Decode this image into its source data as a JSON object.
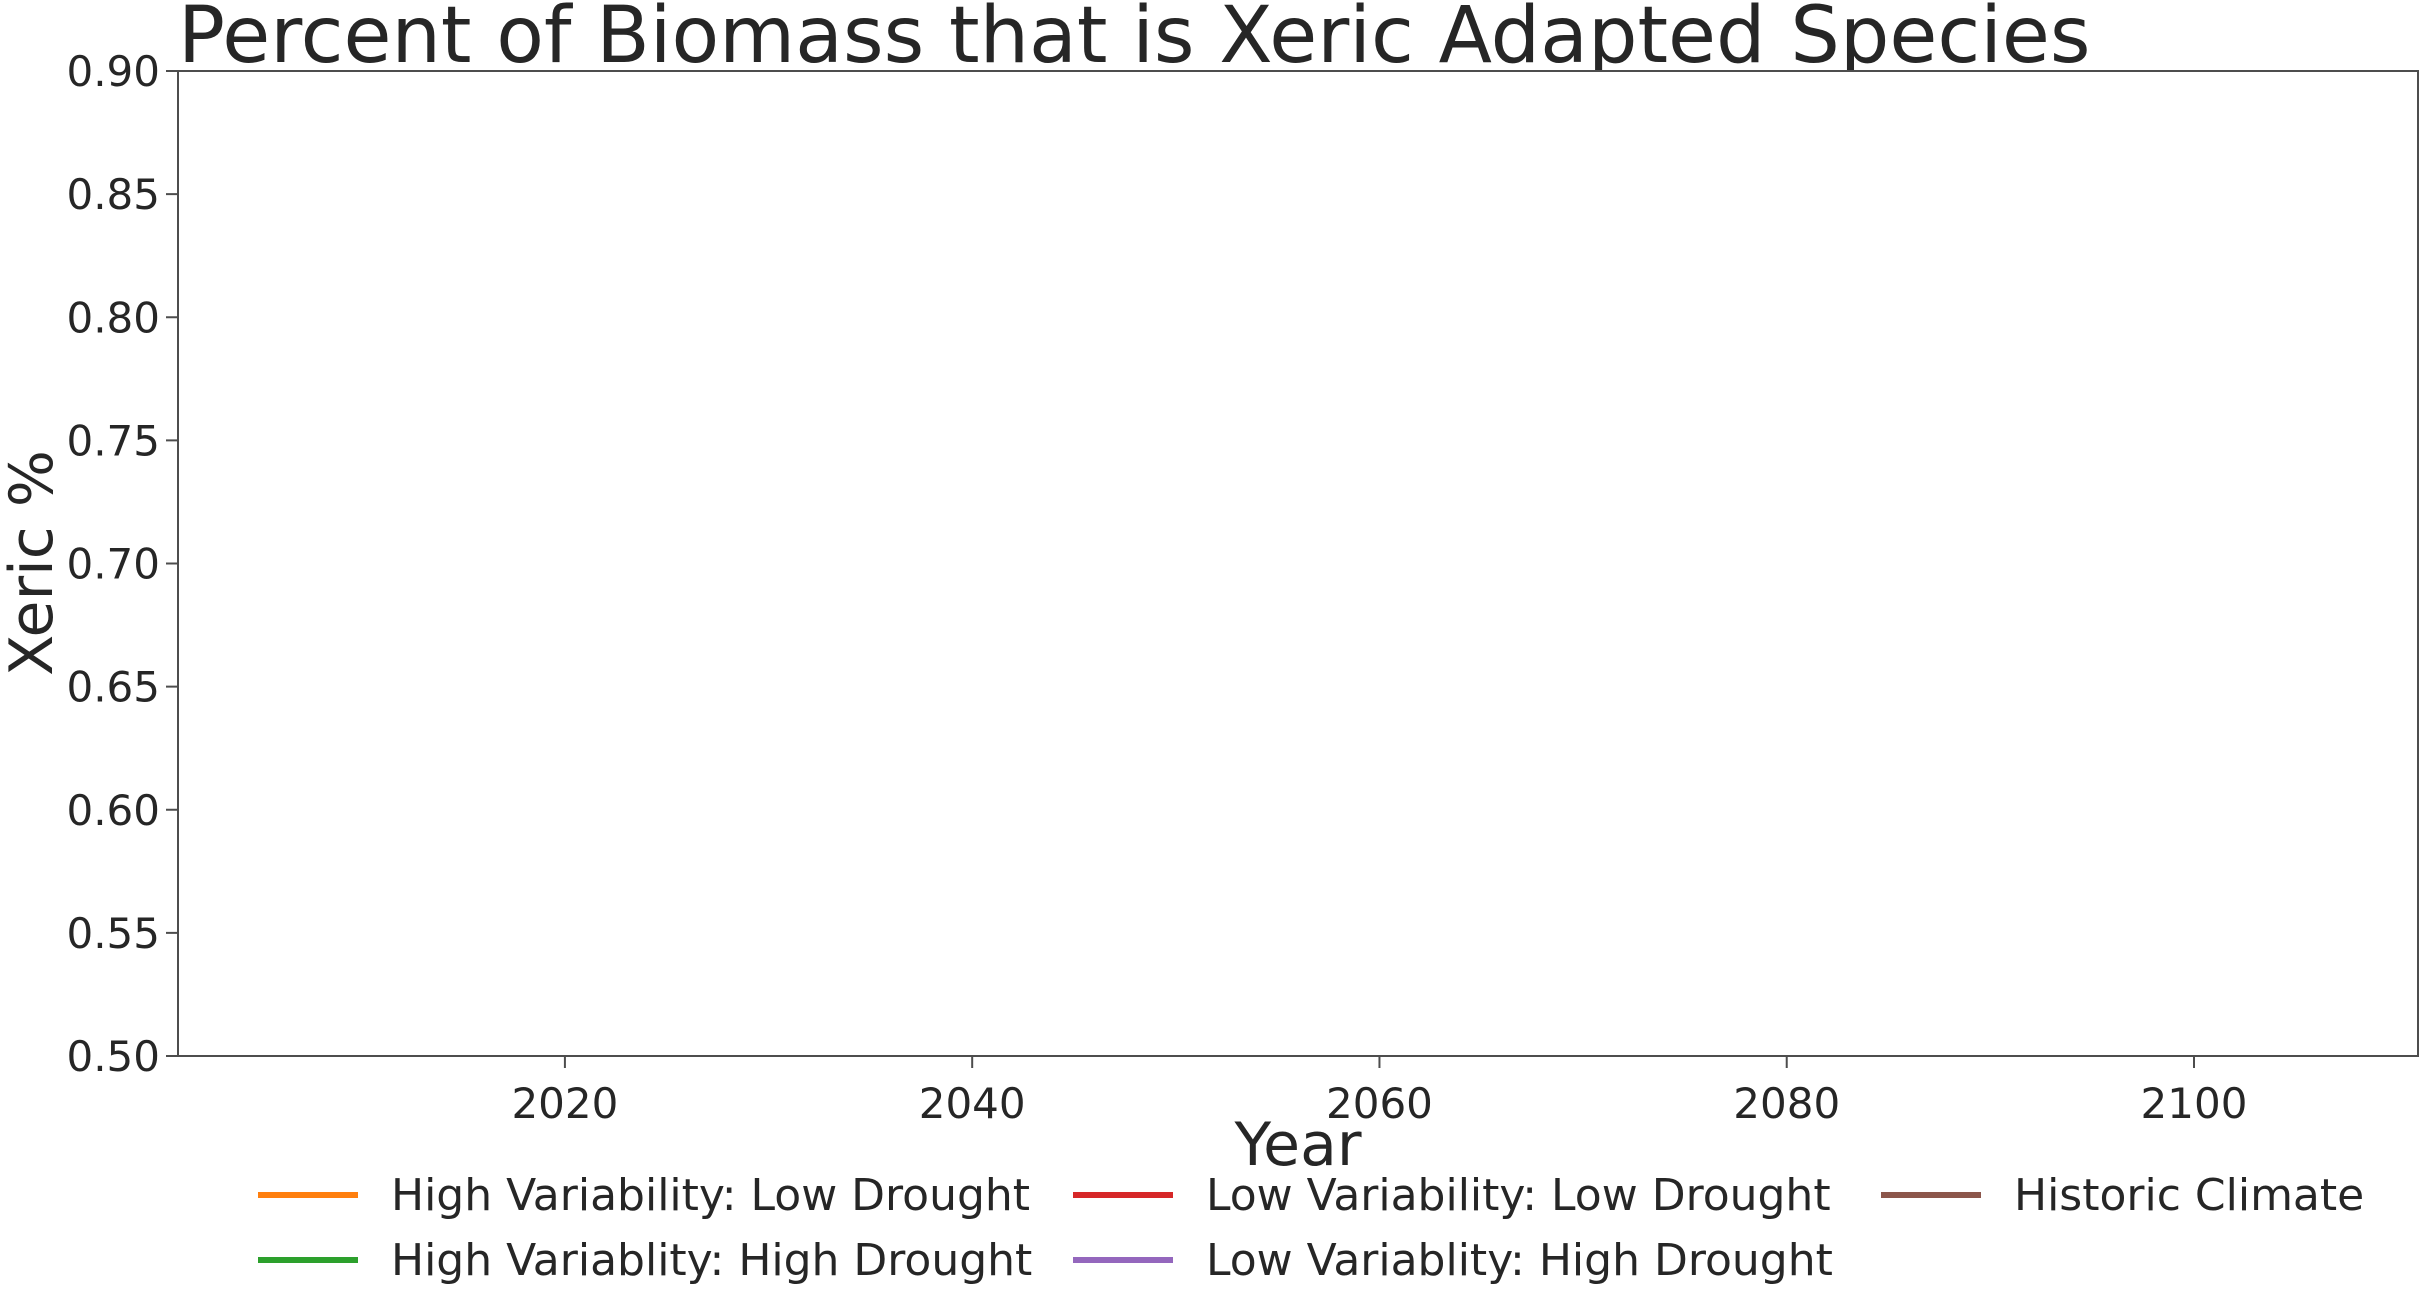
{
  "chart_data": {
    "type": "line",
    "title": "Percent of Biomass that is Xeric Adapted Species",
    "xlabel": "Year",
    "ylabel": "Xeric %",
    "xlim": [
      2001,
      2111
    ],
    "ylim": [
      0.5,
      0.9
    ],
    "x_ticks": [
      2020,
      2040,
      2060,
      2080,
      2100
    ],
    "y_ticks": [
      0.5,
      0.55,
      0.6,
      0.65,
      0.7,
      0.75,
      0.8,
      0.85,
      0.9
    ],
    "y_tick_labels": [
      "0.50",
      "0.55",
      "0.60",
      "0.65",
      "0.70",
      "0.75",
      "0.80",
      "0.85",
      "0.90"
    ],
    "grid": false,
    "legend_position": "bottom",
    "series": [
      {
        "name": "High Variability: Low Drought",
        "color": "#ff7f0e",
        "x": [],
        "values": []
      },
      {
        "name": "High Variablity: High Drought",
        "color": "#2ca02c",
        "x": [],
        "values": []
      },
      {
        "name": "Low Variability: Low Drought",
        "color": "#d62728",
        "x": [],
        "values": []
      },
      {
        "name": "Low Variablity: High Drought",
        "color": "#9467bd",
        "x": [],
        "values": []
      },
      {
        "name": "Historic Climate",
        "color": "#8c564b",
        "x": [],
        "values": []
      }
    ]
  }
}
